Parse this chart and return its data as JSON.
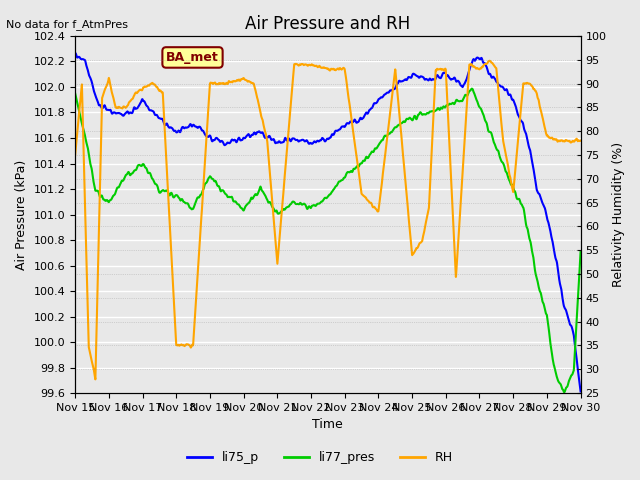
{
  "title": "Air Pressure and RH",
  "top_left_text": "No data for f_AtmPres",
  "xlabel": "Time",
  "ylabel_left": "Air Pressure (kPa)",
  "ylabel_right": "Relativity Humidity (%)",
  "legend_labels": [
    "li75_p",
    "li77_pres",
    "RH"
  ],
  "legend_colors": [
    "#0000ff",
    "#00cc00",
    "#ffa500"
  ],
  "ylim_left": [
    99.6,
    102.4
  ],
  "ylim_right": [
    25,
    100
  ],
  "yticks_left": [
    99.6,
    99.8,
    100.0,
    100.2,
    100.4,
    100.6,
    100.8,
    101.0,
    101.2,
    101.4,
    101.6,
    101.8,
    102.0,
    102.2,
    102.4
  ],
  "yticks_right": [
    25,
    30,
    35,
    40,
    45,
    50,
    55,
    60,
    65,
    70,
    75,
    80,
    85,
    90,
    95,
    100
  ],
  "xtick_labels": [
    "Nov 15",
    "Nov 16",
    "Nov 17",
    "Nov 18",
    "Nov 19",
    "Nov 20",
    "Nov 21",
    "Nov 22",
    "Nov 23",
    "Nov 24",
    "Nov 25",
    "Nov 26",
    "Nov 27",
    "Nov 28",
    "Nov 29",
    "Nov 30"
  ],
  "bg_color": "#e8e8e8",
  "plot_bg_color": "#e8e8e8",
  "grid_color": "#ffffff",
  "annotation_box_text": "BA_met",
  "annotation_box_facecolor": "#ffff99",
  "annotation_box_edgecolor": "#800000",
  "annotation_box_textcolor": "#800000"
}
